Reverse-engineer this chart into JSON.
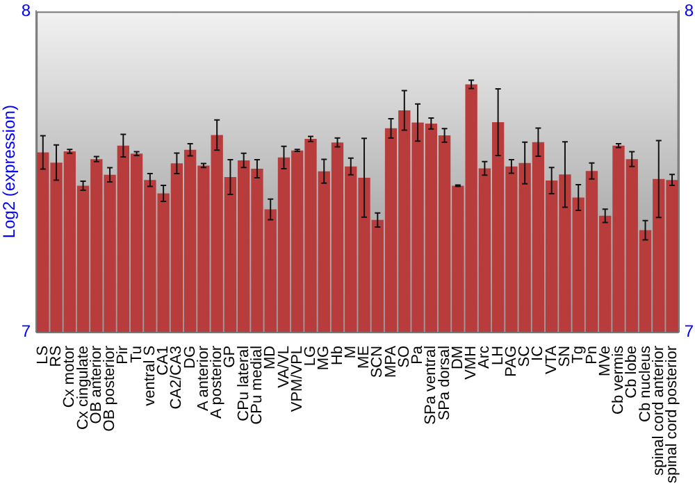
{
  "chart_data": {
    "type": "bar",
    "ylabel": "Log2 (expression)",
    "categories": [
      "LS",
      "RS",
      "Cx motor",
      "Cx cingulate",
      "OB anterior",
      "OB posterior",
      "Pir",
      "Tu",
      "ventral S",
      "CA1",
      "CA2/CA3",
      "DG",
      "A anterior",
      "A posterior",
      "GP",
      "CPu lateral",
      "CPu medial",
      "MD",
      "VA/VL",
      "VPM/VPL",
      "LG",
      "MG",
      "Hb",
      "M",
      "ME",
      "SCN",
      "MPA",
      "SO",
      "Pa",
      "SPa ventral",
      "SPa dorsal",
      "DM",
      "VMH",
      "Arc",
      "LH",
      "PAG",
      "SC",
      "IC",
      "VTA",
      "SN",
      "Tg",
      "Pn",
      "MVe",
      "Cb vermis",
      "Cb lobe",
      "Cb nucleus",
      "spinal cord anterior",
      "spinal cord posterior"
    ],
    "values": [
      7.56,
      7.528,
      7.563,
      7.456,
      7.539,
      7.49,
      7.581,
      7.556,
      7.474,
      7.432,
      7.526,
      7.568,
      7.519,
      7.614,
      7.483,
      7.535,
      7.509,
      7.382,
      7.544,
      7.566,
      7.602,
      7.501,
      7.591,
      7.516,
      7.481,
      7.349,
      7.635,
      7.691,
      7.653,
      7.65,
      7.613,
      7.456,
      7.772,
      7.51,
      7.654,
      7.516,
      7.527,
      7.592,
      7.472,
      7.491,
      7.419,
      7.502,
      7.362,
      7.581,
      7.539,
      7.317,
      7.477,
      7.474
    ],
    "errors": [
      0.052,
      0.055,
      0.006,
      0.014,
      0.008,
      0.022,
      0.035,
      0.006,
      0.02,
      0.025,
      0.032,
      0.019,
      0.006,
      0.047,
      0.054,
      0.022,
      0.028,
      0.032,
      0.035,
      0.003,
      0.008,
      0.037,
      0.014,
      0.026,
      0.123,
      0.022,
      0.03,
      0.062,
      0.058,
      0.017,
      0.021,
      0.002,
      0.013,
      0.021,
      0.104,
      0.021,
      0.065,
      0.044,
      0.041,
      0.102,
      0.04,
      0.025,
      0.021,
      0.006,
      0.023,
      0.03,
      0.12,
      0.017
    ],
    "color": "#b83c3c",
    "ylim": [
      7,
      8
    ],
    "yticks": [
      7,
      8
    ],
    "y2lim": [
      7,
      8
    ],
    "y2ticks": [
      7,
      8
    ],
    "grid": false,
    "legend": false
  }
}
